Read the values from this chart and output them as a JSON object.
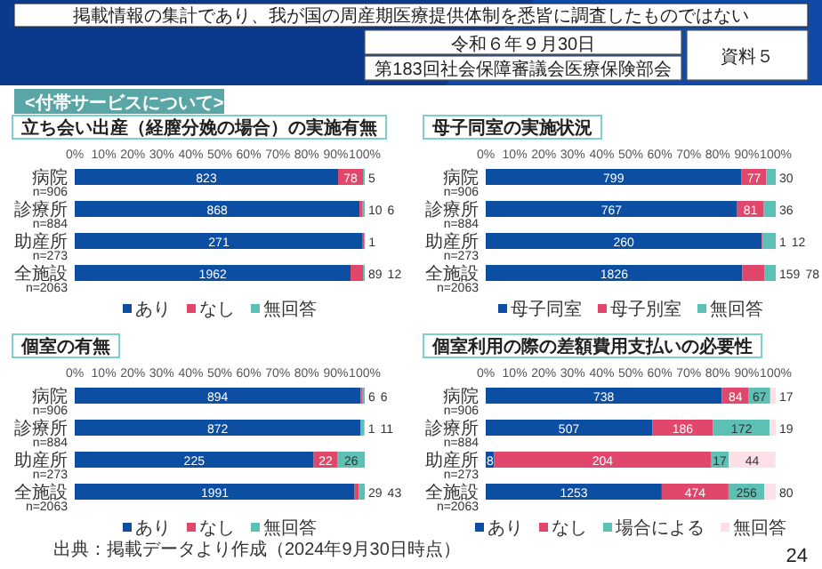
{
  "chart_data": [
    {
      "type": "bar",
      "title": "立ち会い出産（経膣分娩の場合）の実施有無",
      "categories": [
        "病院\nn=906",
        "診療所\nn=884",
        "助産所\nn=273",
        "全施設\nn=2063"
      ],
      "orientation": "horizontal",
      "stacked": true,
      "legend": "bottom",
      "xlim": [
        0,
        100
      ],
      "xticks": [
        {
          "value": 0,
          "label": "0%"
        },
        {
          "value": 10,
          "label": "10%"
        },
        {
          "value": 20,
          "label": "20%"
        },
        {
          "value": 30,
          "label": "30%"
        },
        {
          "value": 40,
          "label": "40%"
        },
        {
          "value": 50,
          "label": "50%"
        },
        {
          "value": 60,
          "label": "60%"
        },
        {
          "value": 70,
          "label": "70%"
        },
        {
          "value": 80,
          "label": "80%"
        },
        {
          "value": 90,
          "label": "90%"
        },
        {
          "value": 100,
          "label": "100%"
        }
      ],
      "series": [
        {
          "name": "あり",
          "color": "#0b4ea2",
          "values": [
            90.8,
            98.2,
            99.3,
            95.1
          ]
        },
        {
          "name": "なし",
          "color": "#e0476b",
          "values": [
            8.6,
            1.1,
            0.4,
            4.3
          ]
        },
        {
          "name": "無回答",
          "color": "#5cc0b5",
          "values": [
            0.6,
            0.7,
            0.4,
            0.6
          ]
        }
      ],
      "annotations": [
        {
          "text": "823",
          "x": 45.4,
          "y": "病院\nn=906"
        },
        {
          "text": "78",
          "x": 95.1,
          "y": "病院\nn=906"
        },
        {
          "text": "5",
          "x": 99.7,
          "y": "病院\nn=906"
        },
        {
          "text": "868",
          "x": 49.1,
          "y": "診療所\nn=884"
        },
        {
          "text": "10",
          "x": 98.8,
          "y": "診療所\nn=884"
        },
        {
          "text": "6",
          "x": 99.7,
          "y": "診療所\nn=884"
        },
        {
          "text": "271",
          "x": 49.7,
          "y": "助産所\nn=273"
        },
        {
          "text": "1",
          "x": 99.8,
          "y": "助産所\nn=273"
        },
        {
          "text": "1962",
          "x": 47.6,
          "y": "全施設\nn=2063"
        },
        {
          "text": "89",
          "x": 97.3,
          "y": "全施設\nn=2063"
        },
        {
          "text": "12",
          "x": 99.7,
          "y": "全施設\nn=2063"
        }
      ]
    },
    {
      "type": "bar",
      "title": "母子同室の実施状況",
      "categories": [
        "病院\nn=906",
        "診療所\nn=884",
        "助産所\nn=273",
        "全施設\nn=2063"
      ],
      "orientation": "horizontal",
      "stacked": true,
      "legend": "bottom",
      "xlim": [
        0,
        100
      ],
      "xticks": [
        {
          "value": 0,
          "label": "0%"
        },
        {
          "value": 10,
          "label": "10%"
        },
        {
          "value": 20,
          "label": "20%"
        },
        {
          "value": 30,
          "label": "30%"
        },
        {
          "value": 40,
          "label": "40%"
        },
        {
          "value": 50,
          "label": "50%"
        },
        {
          "value": 60,
          "label": "60%"
        },
        {
          "value": 70,
          "label": "70%"
        },
        {
          "value": 80,
          "label": "80%"
        },
        {
          "value": 90,
          "label": "90%"
        },
        {
          "value": 100,
          "label": "100%"
        }
      ],
      "series": [
        {
          "name": "母子同室",
          "color": "#0b4ea2",
          "values": [
            88.2,
            86.7,
            95.2,
            88.5
          ]
        },
        {
          "name": "母子別室",
          "color": "#e0476b",
          "values": [
            8.5,
            9.2,
            0.4,
            7.7
          ]
        },
        {
          "name": "無回答",
          "color": "#5cc0b5",
          "values": [
            3.3,
            4.1,
            4.4,
            3.8
          ]
        }
      ],
      "annotations": [
        {
          "text": "799",
          "x": 44.1,
          "y": "病院\nn=906"
        },
        {
          "text": "77",
          "x": 92.5,
          "y": "病院\nn=906"
        },
        {
          "text": "30",
          "x": 98.4,
          "y": "病院\nn=906"
        },
        {
          "text": "767",
          "x": 43.4,
          "y": "診療所\nn=884"
        },
        {
          "text": "81",
          "x": 91.3,
          "y": "診療所\nn=884"
        },
        {
          "text": "36",
          "x": 97.9,
          "y": "診療所\nn=884"
        },
        {
          "text": "260",
          "x": 47.6,
          "y": "助産所\nn=273"
        },
        {
          "text": "1",
          "x": 95.4,
          "y": "助産所\nn=273"
        },
        {
          "text": "12",
          "x": 97.8,
          "y": "助産所\nn=273"
        },
        {
          "text": "1826",
          "x": 44.3,
          "y": "全施設\nn=2063"
        },
        {
          "text": "159",
          "x": 92.4,
          "y": "全施設\nn=2063"
        },
        {
          "text": "78",
          "x": 98.1,
          "y": "全施設\nn=2063"
        }
      ]
    },
    {
      "type": "bar",
      "title": "個室の有無",
      "categories": [
        "病院\nn=906",
        "診療所\nn=884",
        "助産所\nn=273",
        "全施設\nn=2063"
      ],
      "orientation": "horizontal",
      "stacked": true,
      "legend": "bottom",
      "xlim": [
        0,
        100
      ],
      "xticks": [
        {
          "value": 0,
          "label": "0%"
        },
        {
          "value": 10,
          "label": "10%"
        },
        {
          "value": 20,
          "label": "20%"
        },
        {
          "value": 30,
          "label": "30%"
        },
        {
          "value": 40,
          "label": "40%"
        },
        {
          "value": 50,
          "label": "50%"
        },
        {
          "value": 60,
          "label": "60%"
        },
        {
          "value": 70,
          "label": "70%"
        },
        {
          "value": 80,
          "label": "80%"
        },
        {
          "value": 90,
          "label": "90%"
        },
        {
          "value": 100,
          "label": "100%"
        }
      ],
      "series": [
        {
          "name": "あり",
          "color": "#0b4ea2",
          "values": [
            98.6,
            98.6,
            82.4,
            96.5
          ]
        },
        {
          "name": "なし",
          "color": "#e0476b",
          "values": [
            0.7,
            0.1,
            8.1,
            1.4
          ]
        },
        {
          "name": "無回答",
          "color": "#5cc0b5",
          "values": [
            0.7,
            1.2,
            9.5,
            2.1
          ]
        }
      ],
      "annotations": [
        {
          "text": "894",
          "x": 49.3,
          "y": "病院\nn=906"
        },
        {
          "text": "6",
          "x": 99.0,
          "y": "病院\nn=906"
        },
        {
          "text": "6",
          "x": 99.7,
          "y": "病院\nn=906"
        },
        {
          "text": "872",
          "x": 49.3,
          "y": "診療所\nn=884"
        },
        {
          "text": "1",
          "x": 98.7,
          "y": "診療所\nn=884"
        },
        {
          "text": "11",
          "x": 99.3,
          "y": "診療所\nn=884"
        },
        {
          "text": "225",
          "x": 41.2,
          "y": "助産所\nn=273"
        },
        {
          "text": "22",
          "x": 86.5,
          "y": "助産所\nn=273"
        },
        {
          "text": "26",
          "x": 95.3,
          "y": "助産所\nn=273"
        },
        {
          "text": "1991",
          "x": 48.3,
          "y": "全施設\nn=2063"
        },
        {
          "text": "29",
          "x": 97.2,
          "y": "全施設\nn=2063"
        },
        {
          "text": "43",
          "x": 99.0,
          "y": "全施設\nn=2063"
        },
        "出典：掲載データより作成（2024年9月30日時点）"
      ]
    },
    {
      "type": "bar",
      "title": "個室利用の際の差額費用支払いの必要性",
      "categories": [
        "病院\nn=906",
        "診療所\nn=884",
        "助産所\nn=273",
        "全施設\nn=2063"
      ],
      "orientation": "horizontal",
      "stacked": true,
      "legend": "bottom",
      "xlim": [
        0,
        100
      ],
      "xticks": [
        {
          "value": 0,
          "label": "0%"
        },
        {
          "value": 10,
          "label": "10%"
        },
        {
          "value": 20,
          "label": "20%"
        },
        {
          "value": 30,
          "label": "30%"
        },
        {
          "value": 40,
          "label": "40%"
        },
        {
          "value": 50,
          "label": "50%"
        },
        {
          "value": 60,
          "label": "60%"
        },
        {
          "value": 70,
          "label": "70%"
        },
        {
          "value": 80,
          "label": "80%"
        },
        {
          "value": 90,
          "label": "90%"
        },
        {
          "value": 100,
          "label": "100%"
        }
      ],
      "series": [
        {
          "name": "あり",
          "color": "#0b4ea2",
          "values": [
            81.4,
            57.4,
            2.9,
            60.7
          ]
        },
        {
          "name": "なし",
          "color": "#e0476b",
          "values": [
            9.3,
            21.0,
            74.7,
            23.0
          ]
        },
        {
          "name": "場合による",
          "color": "#5cc0b5",
          "values": [
            7.4,
            19.5,
            6.2,
            12.4
          ]
        },
        {
          "name": "無回答",
          "color": "#fde0e6",
          "values": [
            1.9,
            2.1,
            16.1,
            3.9
          ]
        }
      ],
      "annotations": [
        {
          "text": "738",
          "x": 40.7,
          "y": "病院\nn=906"
        },
        {
          "text": "84",
          "x": 86.1,
          "y": "病院\nn=906"
        },
        {
          "text": "67",
          "x": 94.4,
          "y": "病院\nn=906"
        },
        {
          "text": "17",
          "x": 99.1,
          "y": "病院\nn=906"
        },
        {
          "text": "507",
          "x": 28.7,
          "y": "診療所\nn=884"
        },
        {
          "text": "186",
          "x": 67.9,
          "y": "診療所\nn=884"
        },
        {
          "text": "172",
          "x": 88.2,
          "y": "診療所\nn=884"
        },
        {
          "text": "19",
          "x": 99.0,
          "y": "診療所\nn=884"
        },
        {
          "text": "8",
          "x": 1.5,
          "y": "助産所\nn=273"
        },
        {
          "text": "204",
          "x": 40.3,
          "y": "助産所\nn=273"
        },
        {
          "text": "17",
          "x": 80.7,
          "y": "助産所\nn=273"
        },
        {
          "text": "44",
          "x": 91.9,
          "y": "助産所\nn=273"
        },
        {
          "text": "1253",
          "x": 30.4,
          "y": "全施設\nn=2063"
        },
        {
          "text": "474",
          "x": 72.2,
          "y": "全施設\nn=2063"
        },
        {
          "text": "256",
          "x": 89.9,
          "y": "全施設\nn=2063"
        },
        {
          "text": "80",
          "x": 98.1,
          "y": "全施設\nn=2063"
        }
      ]
    },
    {
      "type": "other",
      "annotations": [
        "掲載情報の集計であり、我が国の周産期医療提供体制を悉皆に調査したものではない",
        "令和６年９月30日",
        "第183回社会保障審議会医療保険部会",
        "資料５",
        "<付帯サービスについて>",
        "24"
      ]
    }
  ]
}
